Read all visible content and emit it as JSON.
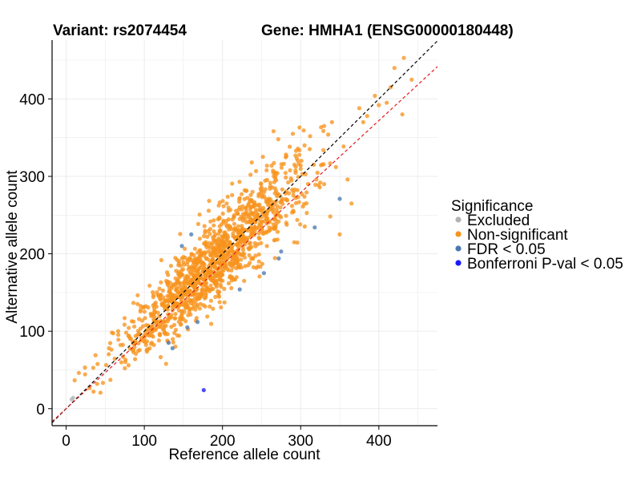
{
  "chart_data": {
    "type": "scatter",
    "title_left": "Variant: rs2074454",
    "title_right": "Gene: HMHA1 (ENSG00000180448)",
    "xlabel": "Reference allele count",
    "ylabel": "Alternative allele count",
    "xlim": [
      -18,
      475
    ],
    "ylim": [
      -22,
      476
    ],
    "x_ticks": [
      0,
      100,
      200,
      300,
      400
    ],
    "y_ticks": [
      0,
      100,
      200,
      300,
      400
    ],
    "grid": true,
    "legend_position": "right",
    "legend_title": "Significance",
    "legend": [
      {
        "label": "Excluded",
        "color": "#b3b3b3"
      },
      {
        "label": "Non-significant",
        "color": "#f7941d"
      },
      {
        "label": "FDR < 0.05",
        "color": "#4a78b4"
      },
      {
        "label": "Bonferroni P-val < 0.05",
        "color": "#1a1aff"
      }
    ],
    "reference_lines": [
      {
        "name": "identity",
        "slope": 1.0,
        "intercept": 0,
        "color": "#000000",
        "dash": true
      },
      {
        "name": "fit",
        "slope": 0.93,
        "intercept": 0,
        "color": "#e41a1c",
        "dash": true
      }
    ],
    "series": [
      {
        "name": "Excluded",
        "color": "#b3b3b3",
        "x": [
          9,
          7
        ],
        "y": [
          14,
          12
        ]
      },
      {
        "name": "Non-significant",
        "color": "#f7941d",
        "generated_count": 1300,
        "x": [
          432,
          420,
          442,
          375,
          395,
          410,
          400,
          385,
          340,
          330,
          312,
          305,
          290,
          292,
          330,
          345,
          360,
          365,
          350,
          380,
          325,
          320,
          300,
          285,
          415,
          430
        ],
        "y": [
          453,
          440,
          425,
          388,
          404,
          395,
          392,
          378,
          370,
          365,
          352,
          340,
          355,
          315,
          290,
          312,
          296,
          265,
          225,
          370,
          292,
          296,
          314,
          278,
          415,
          380
        ]
      },
      {
        "name": "FDR < 0.05",
        "color": "#4a78b4",
        "x": [
          160,
          148,
          350,
          318,
          275,
          272,
          222,
          253,
          168,
          155,
          136,
          131
        ],
        "y": [
          225,
          210,
          271,
          234,
          203,
          194,
          154,
          175,
          112,
          105,
          78,
          85
        ]
      },
      {
        "name": "Bonferroni P-val < 0.05",
        "color": "#1a1aff",
        "x": [
          176
        ],
        "y": [
          24
        ]
      }
    ]
  }
}
